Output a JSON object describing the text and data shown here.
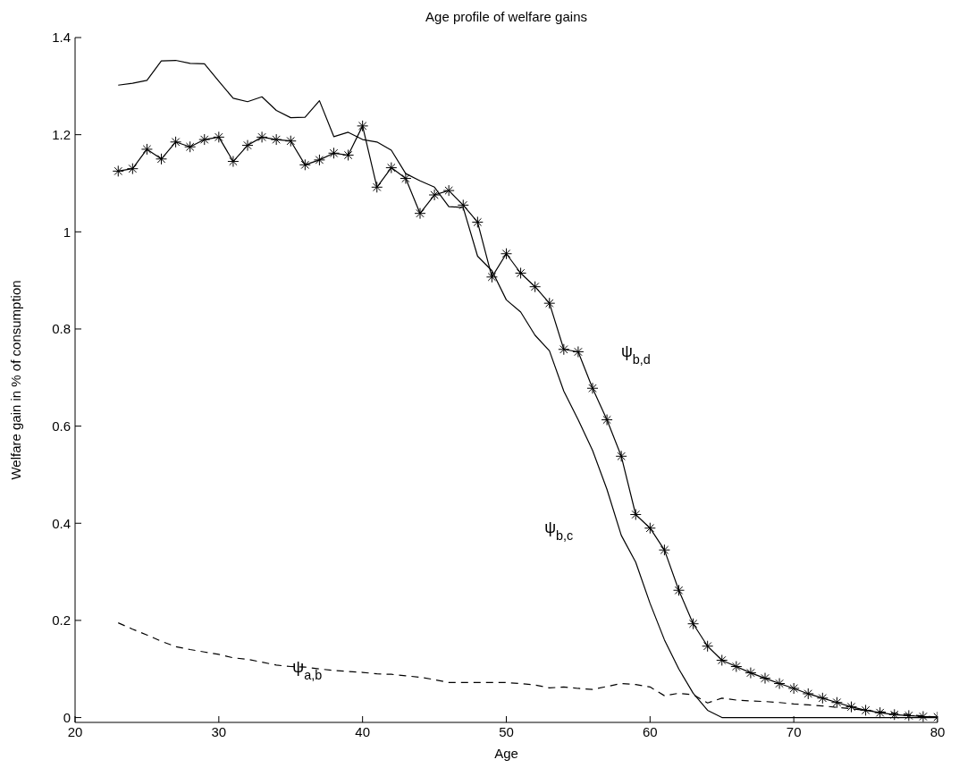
{
  "chart_data": {
    "type": "line",
    "title": "Age profile of welfare gains",
    "xlabel": "Age",
    "ylabel": "Welfare gain in % of consumption",
    "x": [
      23,
      24,
      25,
      26,
      27,
      28,
      29,
      30,
      31,
      32,
      33,
      34,
      35,
      36,
      37,
      38,
      39,
      40,
      41,
      42,
      43,
      44,
      45,
      46,
      47,
      48,
      49,
      50,
      51,
      52,
      53,
      54,
      55,
      56,
      57,
      58,
      59,
      60,
      61,
      62,
      63,
      64,
      65,
      66,
      67,
      68,
      69,
      70,
      71,
      72,
      73,
      74,
      75,
      76,
      77,
      78,
      79,
      80
    ],
    "xlim": [
      20,
      80
    ],
    "xticks": [
      20,
      30,
      40,
      50,
      60,
      70,
      80
    ],
    "ylim": [
      -0.01,
      1.4
    ],
    "yticks": [
      0,
      0.2,
      0.4,
      0.6,
      0.8,
      1,
      1.2,
      1.4
    ],
    "grid": false,
    "series": [
      {
        "name": "ψ$_{b,d}$",
        "color": "#000000",
        "marker": "cross",
        "line_style": "solid",
        "values": [
          1.125,
          1.13,
          1.17,
          1.15,
          1.185,
          1.175,
          1.19,
          1.195,
          1.145,
          1.178,
          1.195,
          1.19,
          1.187,
          1.138,
          1.148,
          1.162,
          1.158,
          1.218,
          1.092,
          1.132,
          1.11,
          1.038,
          1.076,
          1.085,
          1.055,
          1.02,
          0.907,
          0.955,
          0.915,
          0.887,
          0.853,
          0.758,
          0.753,
          0.678,
          0.613,
          0.538,
          0.418,
          0.39,
          0.345,
          0.262,
          0.193,
          0.147,
          0.118,
          0.105,
          0.092,
          0.081,
          0.07,
          0.06,
          0.049,
          0.04,
          0.031,
          0.022,
          0.015,
          0.01,
          0.006,
          0.004,
          0.002,
          0.001
        ]
      },
      {
        "name": "ψ$_{b,c}$",
        "color": "#000000",
        "marker": "none",
        "line_style": "solid",
        "values": [
          1.302,
          1.306,
          1.312,
          1.352,
          1.353,
          1.347,
          1.346,
          1.31,
          1.275,
          1.268,
          1.278,
          1.25,
          1.235,
          1.236,
          1.27,
          1.196,
          1.205,
          1.19,
          1.185,
          1.168,
          1.12,
          1.105,
          1.092,
          1.052,
          1.05,
          0.95,
          0.92,
          0.86,
          0.835,
          0.787,
          0.755,
          0.672,
          0.613,
          0.55,
          0.47,
          0.375,
          0.32,
          0.235,
          0.16,
          0.1,
          0.05,
          0.015,
          0,
          0,
          0,
          0,
          0,
          0,
          0,
          0,
          0,
          0,
          0,
          0,
          0,
          0,
          0,
          0
        ]
      },
      {
        "name": "ψ$_{a,b}$",
        "color": "#000000",
        "marker": "none",
        "line_style": "dashed",
        "values": [
          0.195,
          0.182,
          0.17,
          0.157,
          0.146,
          0.14,
          0.135,
          0.13,
          0.123,
          0.12,
          0.114,
          0.108,
          0.105,
          0.104,
          0.1,
          0.097,
          0.095,
          0.093,
          0.09,
          0.089,
          0.086,
          0.083,
          0.078,
          0.072,
          0.072,
          0.072,
          0.072,
          0.072,
          0.07,
          0.067,
          0.061,
          0.063,
          0.06,
          0.058,
          0.064,
          0.07,
          0.068,
          0.063,
          0.045,
          0.05,
          0.047,
          0.03,
          0.04,
          0.036,
          0.034,
          0.033,
          0.031,
          0.028,
          0.026,
          0.024,
          0.021,
          0.018,
          0.015,
          0.012,
          0.009,
          0.006,
          0.003,
          0.001
        ]
      }
    ]
  }
}
